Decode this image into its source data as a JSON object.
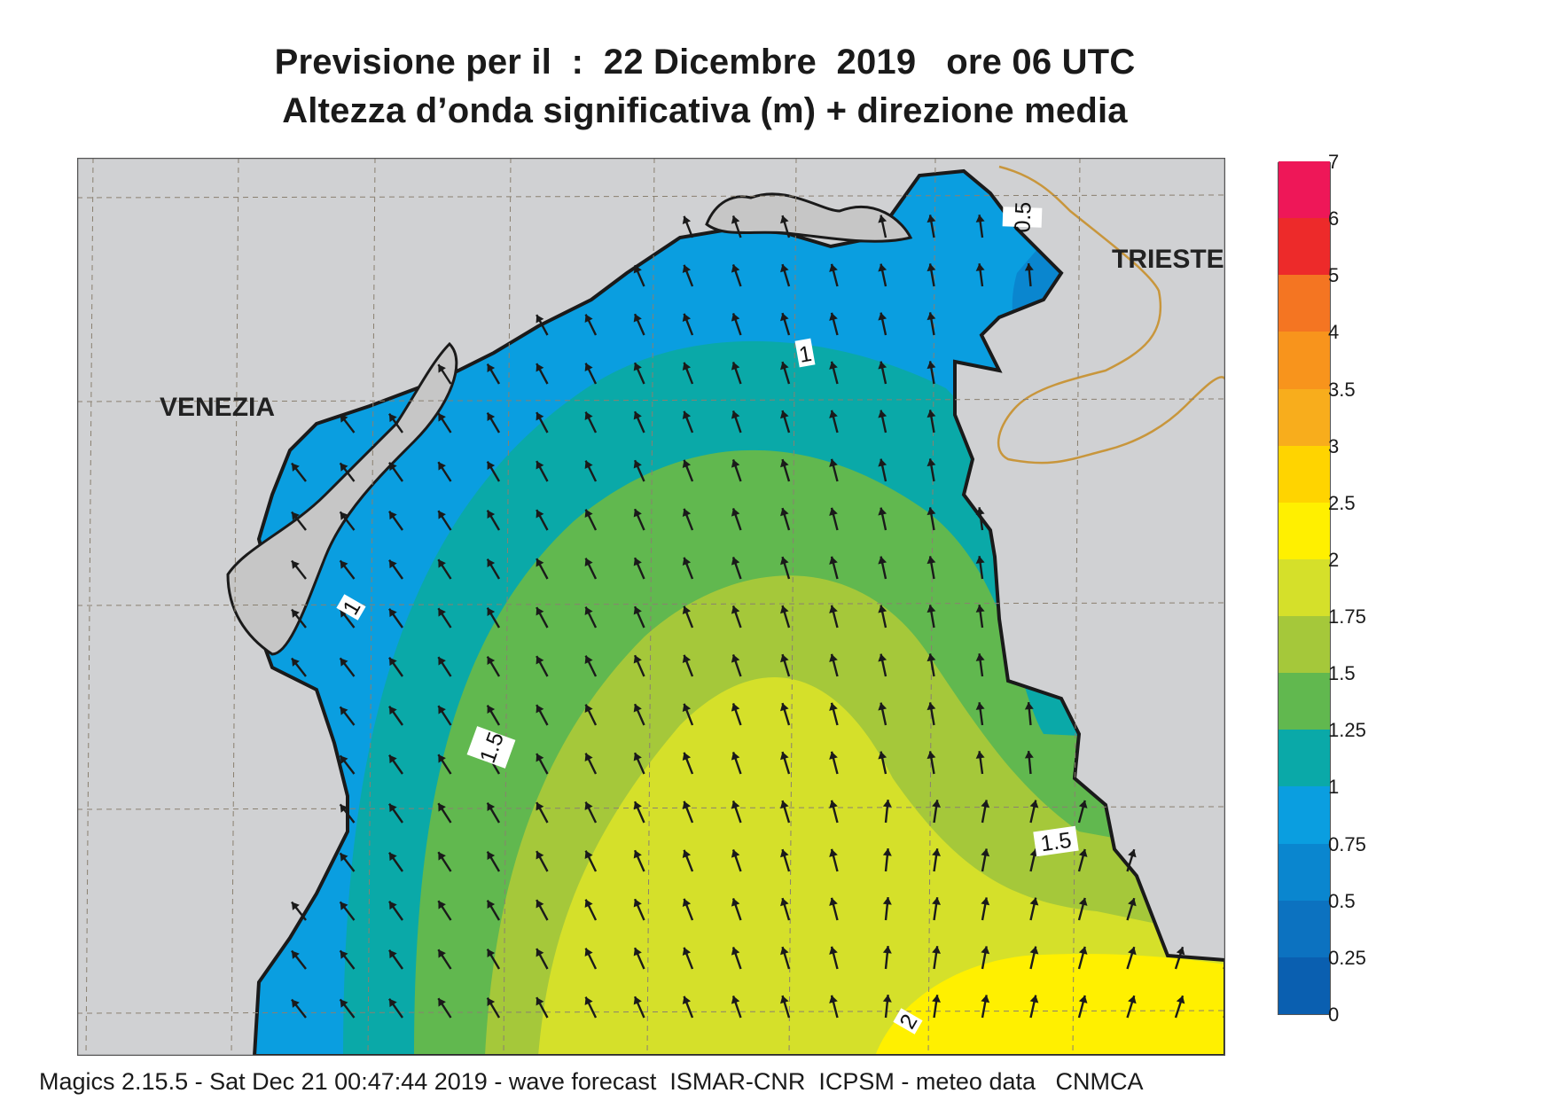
{
  "title": {
    "line1": "Previsione per il  :  22 Dicembre  2019   ore 06 UTC",
    "line2": "Altezza d’onda significativa (m) + direzione media"
  },
  "map": {
    "places": [
      {
        "name": "VENEZIA"
      },
      {
        "name": "TRIESTE"
      }
    ],
    "contour_labels": [
      "0.5",
      "1",
      "1",
      "1.5",
      "1.5",
      "2"
    ],
    "colors": {
      "land": "#d0d1d3",
      "lagoon_land": "#c6c6c6",
      "border": "#c8963c",
      "coast": "#1a1a1a",
      "grid": "#8a8070",
      "arrow": "#1a1a1a"
    }
  },
  "colorbar": {
    "unit": "m",
    "levels": [
      {
        "label": "0",
        "color": "#0a5fb0"
      },
      {
        "label": "0.25",
        "color": "#0c72c0"
      },
      {
        "label": "0.5",
        "color": "#0a86cf"
      },
      {
        "label": "0.75",
        "color": "#0a9ee0"
      },
      {
        "label": "1",
        "color": "#0aa9a8"
      },
      {
        "label": "1.25",
        "color": "#61b84f"
      },
      {
        "label": "1.5",
        "color": "#a5c83a"
      },
      {
        "label": "1.75",
        "color": "#d5e02a"
      },
      {
        "label": "2",
        "color": "#fff000"
      },
      {
        "label": "2.5",
        "color": "#ffd400"
      },
      {
        "label": "3",
        "color": "#f8ad1c"
      },
      {
        "label": "3.5",
        "color": "#f8941c"
      },
      {
        "label": "4",
        "color": "#f47522"
      },
      {
        "label": "5",
        "color": "#ed2a2a"
      },
      {
        "label": "6",
        "color": "#ee1758"
      },
      {
        "label": "7",
        "color": "#ee1758"
      }
    ]
  },
  "footer": "Magics 2.15.5 - Sat Dec 21 00:47:44 2019 - wave forecast  ISMAR-CNR  ICPSM - meteo data   CNMCA"
}
